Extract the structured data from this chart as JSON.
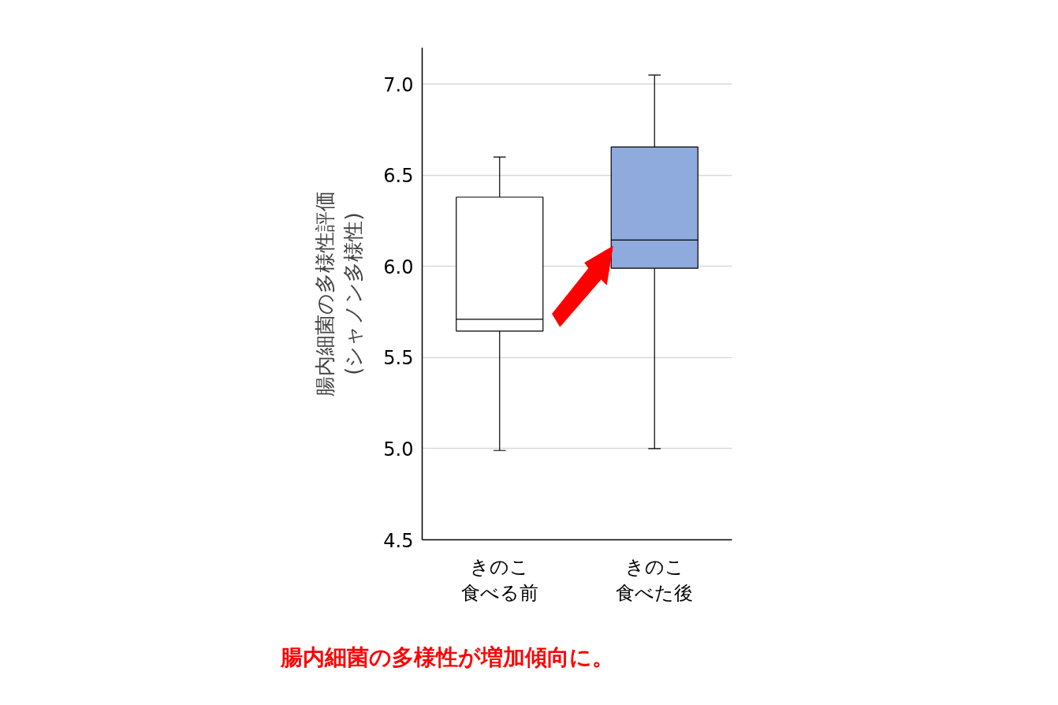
{
  "chart_data": {
    "type": "box",
    "ylabel": "腸内細菌の多様性評価\n(シャノン多様性)",
    "categories": [
      "きのこ食べる前",
      "きのこ食べた後"
    ],
    "boxes": [
      {
        "low": 4.99,
        "q1": 5.645,
        "median": 5.71,
        "q3": 6.38,
        "high": 6.6
      },
      {
        "low": 5.0,
        "q1": 5.99,
        "median": 6.145,
        "q3": 6.655,
        "high": 7.05
      }
    ],
    "colors": [
      "#ffffff",
      "#8faadc"
    ],
    "ylim": [
      4.5,
      7.2
    ],
    "yticks": [
      {
        "value": 4.5,
        "label": "4.5"
      },
      {
        "value": 5.0,
        "label": "5.0"
      },
      {
        "value": 5.5,
        "label": "5.5"
      },
      {
        "value": 6.0,
        "label": "6.0"
      },
      {
        "value": 6.5,
        "label": "6.5"
      },
      {
        "value": 7.0,
        "label": "7.0"
      }
    ],
    "grid": "y",
    "annotations": [
      "腸内細菌の多様性が増加傾向に。"
    ]
  }
}
